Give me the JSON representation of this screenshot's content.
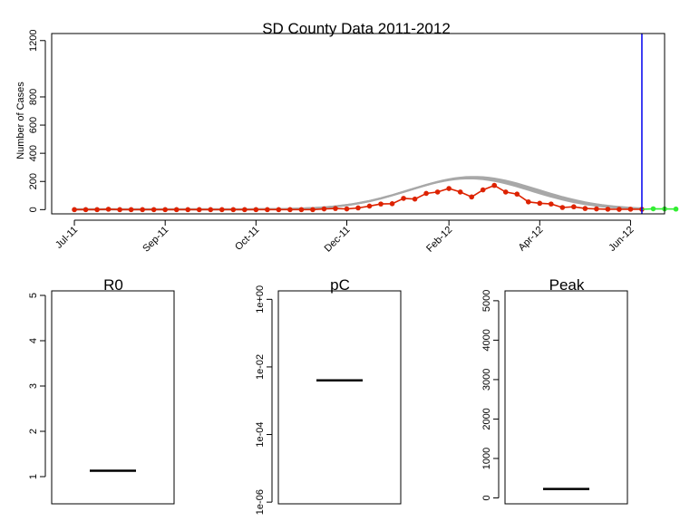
{
  "chart_data": [
    {
      "type": "line",
      "title": "SD County Data 2011-2012",
      "xlabel": "",
      "ylabel": "Number of Cases",
      "ylim": [
        -30,
        1250
      ],
      "y_ticks": [
        0,
        200,
        400,
        600,
        800,
        1200
      ],
      "x_ticks": [
        "Jul-11",
        "Sep-11",
        "Oct-11",
        "Dec-11",
        "Feb-12",
        "Apr-12",
        "Jun-12"
      ],
      "x_tick_weeks": [
        0,
        8,
        16,
        24,
        33,
        41,
        49
      ],
      "x_weeks_range": [
        -2,
        52
      ],
      "grid": false,
      "legend": "none",
      "colors": {
        "observed": "#dd2200",
        "model": "#a8a8a8",
        "future": "#33ee33",
        "marker": "#0000ee"
      },
      "series": [
        {
          "values": [
            0,
            0,
            0,
            3,
            0,
            0,
            0,
            0,
            0,
            0,
            0,
            0,
            0,
            0,
            0,
            0,
            0,
            0,
            0,
            0,
            0,
            0,
            5,
            8,
            5,
            12,
            25,
            40,
            42,
            80,
            75,
            115,
            125,
            150,
            125,
            90,
            140,
            172,
            125,
            110,
            55,
            45,
            40,
            15,
            20,
            8,
            5,
            3,
            2,
            3,
            2
          ]
        },
        {
          "values": [
            6,
            5,
            4
          ],
          "start_week": 50
        }
      ],
      "model_curves": [
        {
          "peak_week": 35,
          "peak": 225,
          "width_weeks": 5.5,
          "floor": 2
        },
        {
          "peak_week": 35.2,
          "peak": 230,
          "width_weeks": 5.6,
          "floor": 2
        },
        {
          "peak_week": 34.8,
          "peak": 220,
          "width_weeks": 5.4,
          "floor": 2
        }
      ],
      "vline_week": 50
    },
    {
      "type": "box",
      "title": "R0",
      "y_ticks": [
        "1",
        "2",
        "3",
        "4",
        "5"
      ],
      "ylim": [
        0.4,
        5.1
      ],
      "value": 1.13
    },
    {
      "type": "box",
      "title": "pC",
      "y_ticks": [
        "1e-06",
        "1e-04",
        "1e-02",
        "1e+00"
      ],
      "y_scale": "log",
      "ylim_log10": [
        -6.05,
        0.25
      ],
      "value": 0.004
    },
    {
      "type": "box",
      "title": "Peak",
      "y_ticks": [
        "0",
        "1000",
        "2000",
        "3000",
        "4000",
        "5000"
      ],
      "ylim": [
        -150,
        5250
      ],
      "value": 225
    }
  ]
}
